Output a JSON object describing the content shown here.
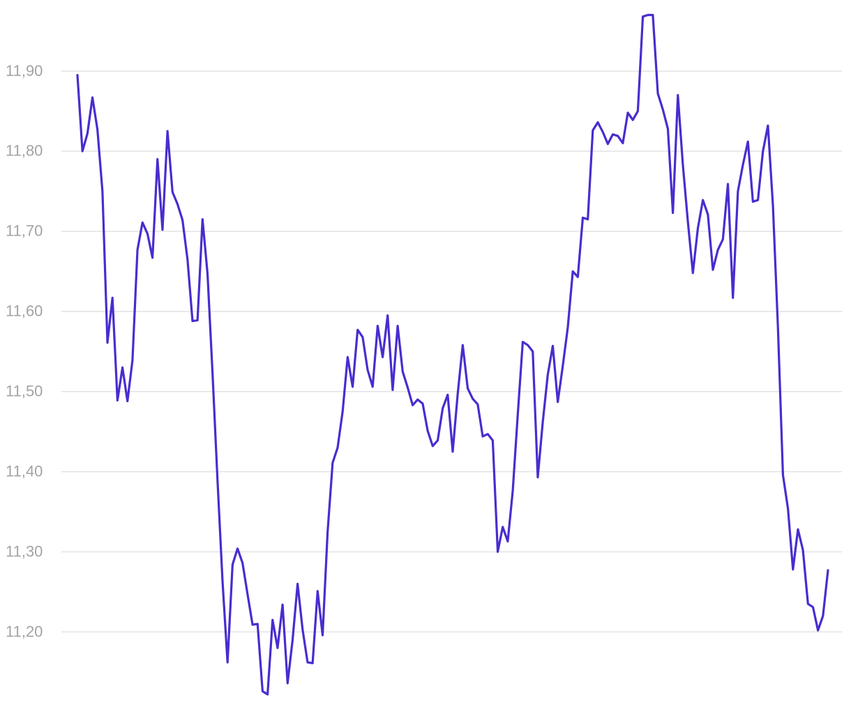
{
  "chart_data": {
    "type": "line",
    "color": "#4a2ccf",
    "grid": true,
    "ylim": [
      11.11,
      11.98
    ],
    "yticks": [
      {
        "value": 11.2,
        "label": "11,20"
      },
      {
        "value": 11.3,
        "label": "11,30"
      },
      {
        "value": 11.4,
        "label": "11,40"
      },
      {
        "value": 11.5,
        "label": "11,50"
      },
      {
        "value": 11.6,
        "label": "11,60"
      },
      {
        "value": 11.7,
        "label": "11,70"
      },
      {
        "value": 11.8,
        "label": "11,80"
      },
      {
        "value": 11.9,
        "label": "11,90"
      }
    ],
    "values": [
      11.895,
      11.8,
      11.822,
      11.867,
      11.827,
      11.75,
      11.561,
      11.617,
      11.489,
      11.53,
      11.488,
      11.539,
      11.677,
      11.711,
      11.697,
      11.667,
      11.79,
      11.702,
      11.825,
      11.749,
      11.734,
      11.714,
      11.665,
      11.588,
      11.589,
      11.715,
      11.647,
      11.523,
      11.389,
      11.263,
      11.162,
      11.284,
      11.304,
      11.286,
      11.247,
      11.209,
      11.21,
      11.126,
      11.122,
      11.215,
      11.18,
      11.234,
      11.136,
      11.19,
      11.26,
      11.203,
      11.162,
      11.161,
      11.251,
      11.196,
      11.325,
      11.411,
      11.43,
      11.475,
      11.543,
      11.506,
      11.577,
      11.568,
      11.527,
      11.506,
      11.582,
      11.543,
      11.595,
      11.502,
      11.582,
      11.525,
      11.505,
      11.483,
      11.49,
      11.485,
      11.451,
      11.432,
      11.439,
      11.479,
      11.496,
      11.425,
      11.497,
      11.558,
      11.504,
      11.491,
      11.484,
      11.444,
      11.447,
      11.439,
      11.3,
      11.331,
      11.313,
      11.376,
      11.471,
      11.562,
      11.558,
      11.55,
      11.393,
      11.462,
      11.521,
      11.557,
      11.487,
      11.532,
      11.58,
      11.65,
      11.643,
      11.717,
      11.715,
      11.826,
      11.836,
      11.824,
      11.809,
      11.821,
      11.819,
      11.81,
      11.848,
      11.839,
      11.85,
      11.968,
      11.97,
      11.97,
      11.872,
      11.852,
      11.828,
      11.723,
      11.87,
      11.783,
      11.712,
      11.648,
      11.704,
      11.739,
      11.721,
      11.652,
      11.677,
      11.69,
      11.759,
      11.617,
      11.75,
      11.783,
      11.812,
      11.737,
      11.739,
      11.8,
      11.832,
      11.732,
      11.58,
      11.396,
      11.354,
      11.278,
      11.328,
      11.302,
      11.235,
      11.231,
      11.202,
      11.22,
      11.277
    ]
  }
}
